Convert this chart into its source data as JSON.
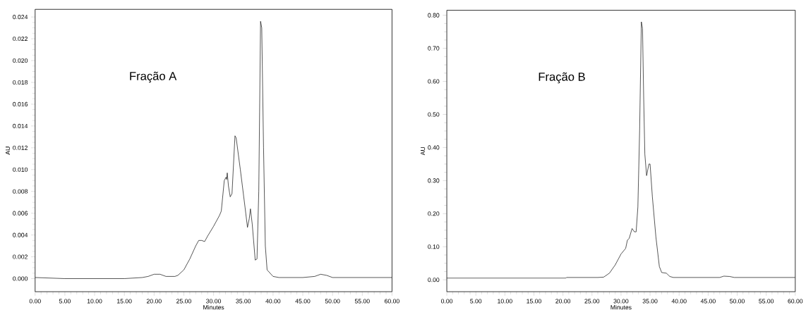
{
  "chart_data": [
    {
      "type": "line",
      "xlabel": "Minutes",
      "ylabel": "AU",
      "annotations": [
        "Fração A"
      ],
      "x": [
        0,
        5,
        10,
        15,
        18,
        19,
        20,
        21,
        22,
        23.5,
        24,
        25,
        26,
        27,
        27.5,
        28,
        28.5,
        29,
        30,
        31,
        31.3,
        31.8,
        32.1,
        32.2,
        32.3,
        32.5,
        32.8,
        33.1,
        33.6,
        33.8,
        34.5,
        35.3,
        35.7,
        36,
        36.2,
        36.5,
        37,
        37.3,
        37.6,
        37.9,
        38.1,
        38.4,
        38.7,
        39,
        40,
        41,
        45,
        47,
        48,
        49,
        50,
        60
      ],
      "series": [
        {
          "color": "#000000",
          "values": [
            0.0001,
            0.0,
            0.0,
            0.0,
            0.0001,
            0.0002,
            0.0004,
            0.0004,
            0.0002,
            0.0002,
            0.0003,
            0.0008,
            0.0018,
            0.003,
            0.0035,
            0.0035,
            0.0034,
            0.0039,
            0.0048,
            0.0058,
            0.0062,
            0.009,
            0.0093,
            0.0091,
            0.0097,
            0.0085,
            0.0075,
            0.0078,
            0.0131,
            0.0129,
            0.01,
            0.0065,
            0.0047,
            0.0055,
            0.0064,
            0.005,
            0.0017,
            0.0018,
            0.008,
            0.0236,
            0.023,
            0.012,
            0.003,
            0.0008,
            0.0002,
            0.0001,
            0.0001,
            0.0002,
            0.0004,
            0.0003,
            0.0001,
            0.0001
          ]
        }
      ],
      "xlim": [
        0,
        60
      ],
      "ylim": [
        -0.0012,
        0.0247
      ],
      "xticks": [
        {
          "value": 0,
          "label": "0.00"
        },
        {
          "value": 5,
          "label": "5.00"
        },
        {
          "value": 10,
          "label": "10.00"
        },
        {
          "value": 15,
          "label": "15.00"
        },
        {
          "value": 20,
          "label": "20.00"
        },
        {
          "value": 25,
          "label": "25.00"
        },
        {
          "value": 30,
          "label": "30.00"
        },
        {
          "value": 35,
          "label": "35.00"
        },
        {
          "value": 40,
          "label": "40.00"
        },
        {
          "value": 45,
          "label": "45.00"
        },
        {
          "value": 50,
          "label": "50.00"
        },
        {
          "value": 55,
          "label": "55.00"
        },
        {
          "value": 60,
          "label": "60.00"
        }
      ],
      "yticks": [
        {
          "value": 0,
          "label": "0.000"
        },
        0.002,
        0.004,
        0.006,
        0.008,
        {
          "value": 0.01,
          "label": "0.010"
        },
        0.012,
        0.014,
        0.016,
        0.018,
        {
          "value": 0.02,
          "label": "0.020"
        },
        0.022,
        0.024
      ]
    },
    {
      "type": "line",
      "xlabel": "Minutes",
      "ylabel": "AU",
      "annotations": [
        "Fração B"
      ],
      "x": [
        0,
        20.5,
        20.6,
        26,
        27,
        28,
        29,
        30,
        30.8,
        31.1,
        31.4,
        31.9,
        32.3,
        32.6,
        32.9,
        33.2,
        33.5,
        33.7,
        33.9,
        34.1,
        34.4,
        34.8,
        35,
        35.4,
        36,
        36.6,
        37,
        37.8,
        38.4,
        39,
        47,
        47.7,
        48.7,
        49.5,
        60
      ],
      "series": [
        {
          "color": "#000000",
          "values": [
            0.005,
            0.005,
            0.007,
            0.007,
            0.008,
            0.02,
            0.045,
            0.078,
            0.095,
            0.12,
            0.125,
            0.155,
            0.145,
            0.145,
            0.22,
            0.45,
            0.78,
            0.76,
            0.55,
            0.38,
            0.315,
            0.35,
            0.35,
            0.25,
            0.13,
            0.04,
            0.022,
            0.02,
            0.01,
            0.007,
            0.007,
            0.011,
            0.01,
            0.007,
            0.007
          ]
        }
      ],
      "xlim": [
        0,
        60
      ],
      "ylim": [
        -0.036,
        0.815
      ],
      "xticks": [
        {
          "value": 0,
          "label": "0.00"
        },
        {
          "value": 5,
          "label": "5.00"
        },
        {
          "value": 10,
          "label": "10.00"
        },
        {
          "value": 15,
          "label": "15.00"
        },
        {
          "value": 20,
          "label": "20.00"
        },
        {
          "value": 25,
          "label": "25.00"
        },
        {
          "value": 30,
          "label": "30.00"
        },
        {
          "value": 35,
          "label": "35.00"
        },
        {
          "value": 40,
          "label": "40.00"
        },
        {
          "value": 45,
          "label": "45.00"
        },
        {
          "value": 50,
          "label": "50.00"
        },
        {
          "value": 55,
          "label": "55.00"
        },
        {
          "value": 60,
          "label": "60.00"
        }
      ],
      "yticks": [
        {
          "value": 0,
          "label": "0.00"
        },
        {
          "value": 0.1,
          "label": "0.10"
        },
        {
          "value": 0.2,
          "label": "0.20"
        },
        {
          "value": 0.3,
          "label": "0.30"
        },
        {
          "value": 0.4,
          "label": "0.40"
        },
        {
          "value": 0.5,
          "label": "0.50"
        },
        {
          "value": 0.6,
          "label": "0.60"
        },
        {
          "value": 0.7,
          "label": "0.70"
        },
        {
          "value": 0.8,
          "label": "0.80"
        }
      ]
    }
  ]
}
